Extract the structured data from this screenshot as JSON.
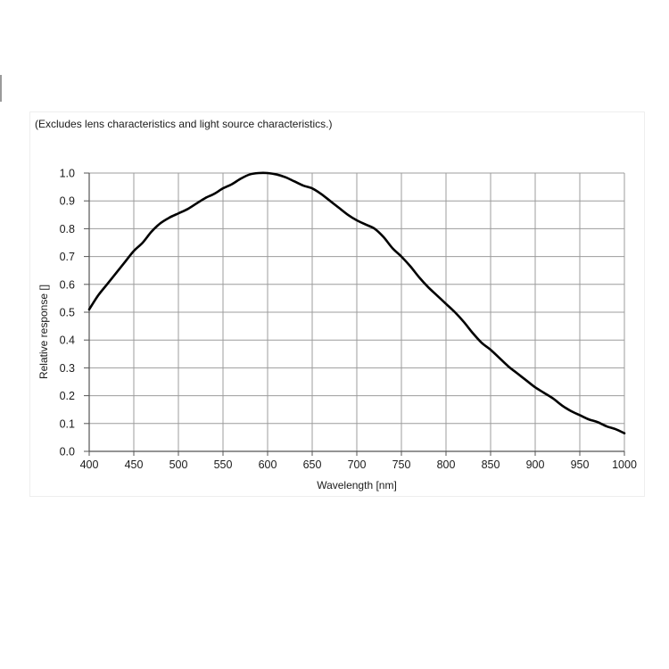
{
  "chart_data": {
    "type": "line",
    "note": "(Excludes lens characteristics and light source characteristics.)",
    "xlabel": "Wavelength [nm]",
    "ylabel": "Relative response []",
    "xlim": [
      400,
      1000
    ],
    "ylim": [
      0,
      1.0
    ],
    "x_ticks": [
      "400",
      "450",
      "500",
      "550",
      "600",
      "650",
      "700",
      "750",
      "800",
      "850",
      "900",
      "950",
      "1000"
    ],
    "y_ticks": [
      "1.0",
      "0.9",
      "0.8",
      "0.7",
      "0.6",
      "0.5",
      "0.4",
      "0.3",
      "0.2",
      "0.1",
      "0.0"
    ],
    "grid": true,
    "series": [
      {
        "color": "#000000",
        "x": [
          400,
          410,
          420,
          430,
          440,
          450,
          460,
          470,
          480,
          490,
          500,
          510,
          520,
          530,
          540,
          550,
          560,
          570,
          580,
          590,
          600,
          610,
          620,
          630,
          640,
          650,
          660,
          670,
          680,
          690,
          700,
          710,
          720,
          730,
          740,
          750,
          760,
          770,
          780,
          790,
          800,
          810,
          820,
          830,
          840,
          850,
          860,
          870,
          880,
          890,
          900,
          910,
          920,
          930,
          940,
          950,
          960,
          970,
          980,
          990,
          1000
        ],
        "y": [
          0.51,
          0.56,
          0.6,
          0.64,
          0.68,
          0.72,
          0.75,
          0.79,
          0.82,
          0.84,
          0.855,
          0.87,
          0.89,
          0.91,
          0.925,
          0.945,
          0.96,
          0.98,
          0.995,
          1.0,
          1.0,
          0.995,
          0.985,
          0.97,
          0.955,
          0.945,
          0.925,
          0.9,
          0.875,
          0.85,
          0.83,
          0.815,
          0.8,
          0.77,
          0.73,
          0.7,
          0.665,
          0.625,
          0.59,
          0.56,
          0.53,
          0.5,
          0.465,
          0.425,
          0.39,
          0.365,
          0.335,
          0.305,
          0.28,
          0.255,
          0.23,
          0.21,
          0.19,
          0.165,
          0.145,
          0.13,
          0.115,
          0.105,
          0.09,
          0.08,
          0.065
        ]
      }
    ]
  }
}
